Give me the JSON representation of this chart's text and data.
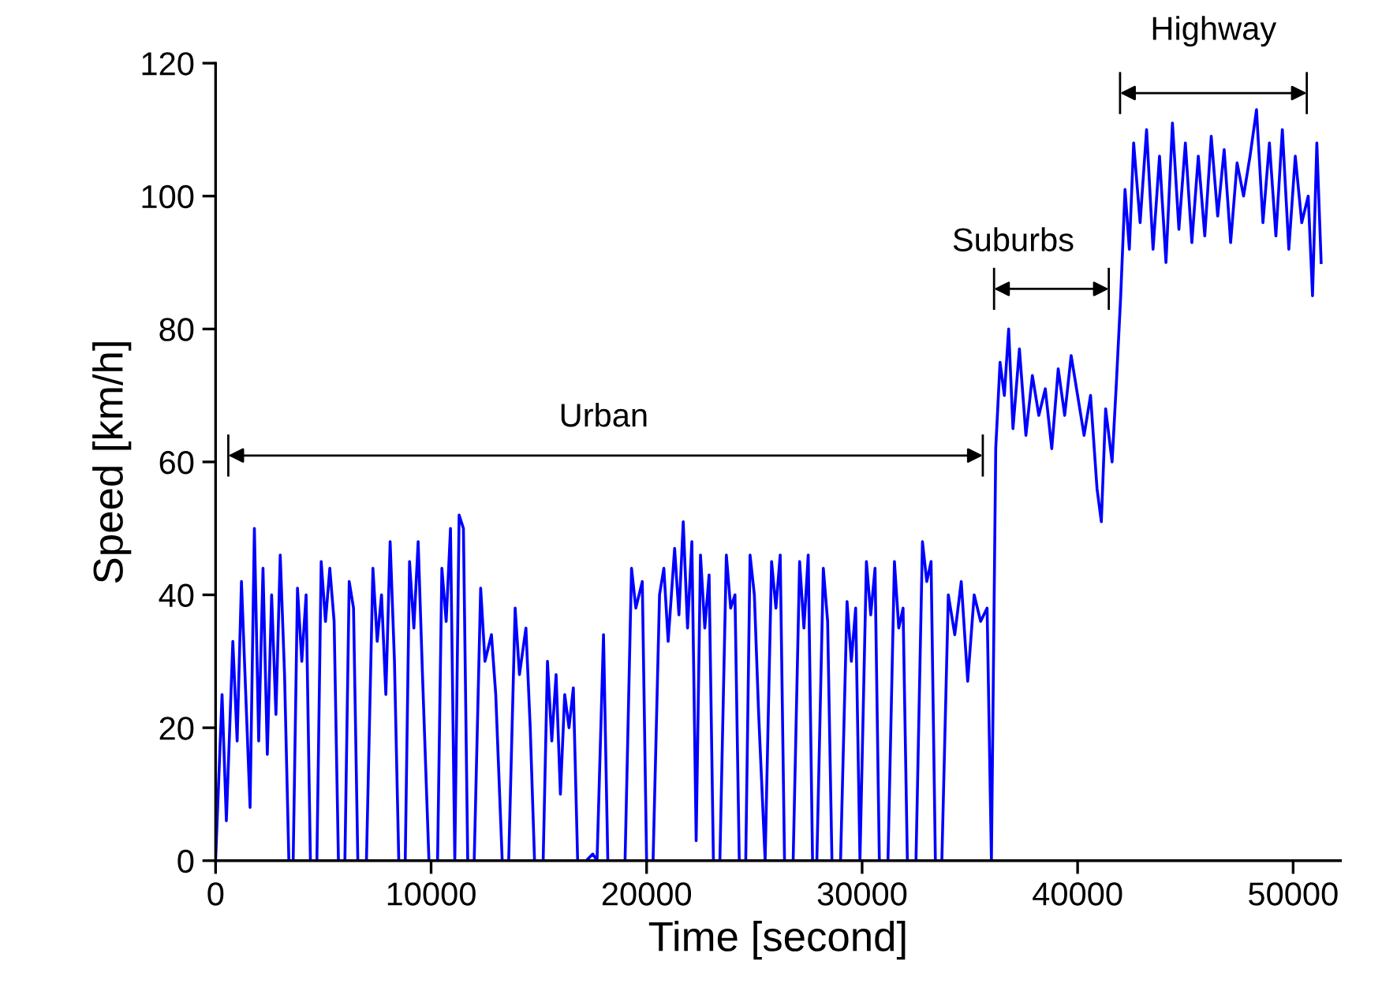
{
  "chart_data": {
    "type": "line",
    "xlabel": "Time [second]",
    "ylabel": "Speed [km/h]",
    "xlim": [
      0,
      52200
    ],
    "ylim": [
      0,
      120
    ],
    "xticks": [
      0,
      10000,
      20000,
      30000,
      40000,
      50000
    ],
    "yticks": [
      0,
      20,
      40,
      60,
      80,
      100,
      120
    ],
    "grid": false,
    "legend": false,
    "marker": "none",
    "line_style": "solid",
    "series": [
      {
        "color": "#0000ff",
        "x": [
          0,
          300,
          500,
          800,
          1000,
          1200,
          1400,
          1600,
          1800,
          2000,
          2200,
          2400,
          2600,
          2800,
          3000,
          3200,
          3400,
          3600,
          3800,
          4000,
          4200,
          4400,
          4700,
          4900,
          5100,
          5300,
          5500,
          5700,
          6000,
          6200,
          6400,
          6600,
          7000,
          7300,
          7500,
          7700,
          7900,
          8100,
          8300,
          8500,
          8800,
          9000,
          9200,
          9400,
          9600,
          9900,
          10300,
          10500,
          10700,
          10900,
          11100,
          11300,
          11500,
          11700,
          12000,
          12300,
          12500,
          12800,
          13000,
          13300,
          13600,
          13900,
          14100,
          14400,
          14600,
          14800,
          15200,
          15400,
          15600,
          15800,
          16000,
          16200,
          16400,
          16600,
          16800,
          17200,
          17500,
          17700,
          18000,
          18200,
          19000,
          19300,
          19500,
          19800,
          20000,
          20300,
          20600,
          20800,
          21000,
          21300,
          21500,
          21700,
          21900,
          22100,
          22300,
          22500,
          22700,
          22900,
          23100,
          23400,
          23700,
          23900,
          24100,
          24300,
          24600,
          24800,
          25000,
          25200,
          25500,
          25800,
          26000,
          26200,
          26400,
          26800,
          27100,
          27300,
          27500,
          27700,
          27900,
          28200,
          28400,
          28600,
          29000,
          29300,
          29500,
          29700,
          29900,
          30200,
          30400,
          30600,
          30800,
          31200,
          31500,
          31700,
          31900,
          32100,
          32500,
          32800,
          33000,
          33200,
          33400,
          33700,
          34000,
          34300,
          34600,
          34900,
          35200,
          35500,
          35800,
          36000,
          36200,
          36400,
          36600,
          36800,
          37000,
          37300,
          37600,
          37900,
          38200,
          38500,
          38800,
          39100,
          39400,
          39700,
          40000,
          40300,
          40600,
          40900,
          41100,
          41300,
          41600,
          41800,
          42000,
          42200,
          42400,
          42600,
          42900,
          43200,
          43500,
          43800,
          44100,
          44400,
          44700,
          45000,
          45300,
          45600,
          45900,
          46200,
          46500,
          46800,
          47100,
          47400,
          47700,
          48000,
          48300,
          48600,
          48900,
          49200,
          49500,
          49800,
          50100,
          50400,
          50700,
          50900,
          51100,
          51300
        ],
        "values": [
          0,
          25,
          6,
          33,
          18,
          42,
          25,
          8,
          50,
          18,
          44,
          16,
          40,
          22,
          46,
          28,
          0,
          0,
          41,
          30,
          40,
          0,
          0,
          45,
          36,
          44,
          36,
          0,
          0,
          42,
          38,
          0,
          0,
          44,
          33,
          40,
          25,
          48,
          30,
          0,
          0,
          45,
          35,
          48,
          28,
          0,
          0,
          44,
          36,
          50,
          0,
          52,
          50,
          0,
          0,
          41,
          30,
          34,
          25,
          0,
          0,
          38,
          28,
          35,
          20,
          0,
          0,
          30,
          18,
          28,
          10,
          25,
          20,
          26,
          0,
          0,
          1,
          0,
          34,
          0,
          0,
          44,
          38,
          42,
          0,
          0,
          40,
          44,
          33,
          47,
          37,
          51,
          35,
          48,
          3,
          46,
          35,
          43,
          0,
          0,
          46,
          38,
          40,
          0,
          0,
          46,
          40,
          22,
          0,
          45,
          38,
          46,
          0,
          0,
          45,
          35,
          46,
          0,
          0,
          44,
          36,
          0,
          0,
          39,
          30,
          38,
          0,
          45,
          37,
          44,
          0,
          0,
          45,
          35,
          38,
          0,
          0,
          48,
          42,
          45,
          0,
          0,
          40,
          34,
          42,
          27,
          40,
          36,
          38,
          0,
          62,
          75,
          70,
          80,
          65,
          77,
          64,
          73,
          67,
          71,
          62,
          74,
          67,
          76,
          70,
          64,
          70,
          56,
          51,
          68,
          60,
          72,
          85,
          101,
          92,
          108,
          96,
          110,
          92,
          106,
          90,
          111,
          95,
          108,
          93,
          106,
          94,
          109,
          97,
          107,
          93,
          105,
          100,
          106,
          113,
          96,
          108,
          94,
          110,
          92,
          106,
          96,
          100,
          85,
          108,
          90
        ]
      }
    ],
    "annotations": [
      "Urban",
      "Suburbs",
      "Highway"
    ]
  }
}
